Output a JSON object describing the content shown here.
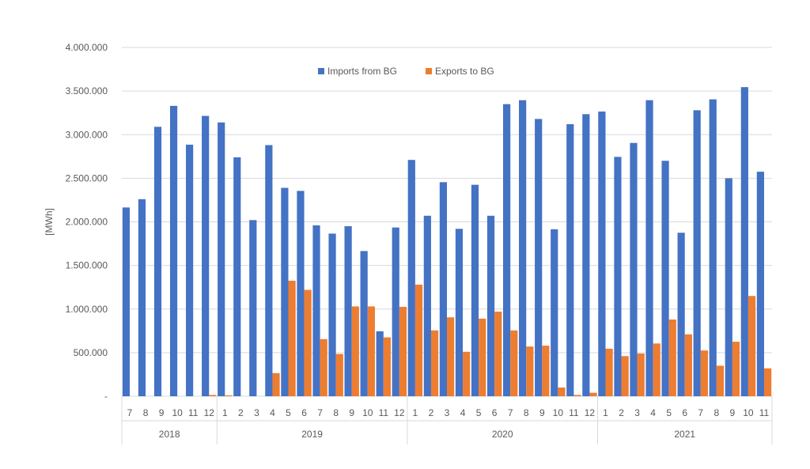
{
  "chart_data": {
    "type": "bar",
    "ylabel": "[MWh]",
    "ylim": [
      0,
      4000000
    ],
    "yticks": [
      0,
      500000,
      1000000,
      1500000,
      2000000,
      2500000,
      3000000,
      3500000,
      4000000
    ],
    "ytick_labels": [
      "-",
      "500.000",
      "1.000.000",
      "1.500.000",
      "2.000.000",
      "2.500.000",
      "3.000.000",
      "3.500.000",
      "4.000.000"
    ],
    "grid": true,
    "legend_position": "top-center",
    "categories": [
      "7",
      "8",
      "9",
      "10",
      "11",
      "12",
      "1",
      "2",
      "3",
      "4",
      "5",
      "6",
      "7",
      "8",
      "9",
      "10",
      "11",
      "12",
      "1",
      "2",
      "3",
      "4",
      "5",
      "6",
      "7",
      "8",
      "9",
      "10",
      "11",
      "12",
      "1",
      "2",
      "3",
      "4",
      "5",
      "6",
      "7",
      "8",
      "9",
      "10",
      "11"
    ],
    "groups": [
      {
        "label": "2018",
        "count": 6
      },
      {
        "label": "2019",
        "count": 12
      },
      {
        "label": "2020",
        "count": 12
      },
      {
        "label": "2021",
        "count": 11
      }
    ],
    "series": [
      {
        "name": "Imports from BG",
        "color": "#4472C4",
        "values": [
          2165000,
          2260000,
          3090000,
          3330000,
          2885000,
          3215000,
          3140000,
          2740000,
          2020000,
          2880000,
          2390000,
          2355000,
          1960000,
          1865000,
          1950000,
          1665000,
          745000,
          1935000,
          2710000,
          2070000,
          2455000,
          1920000,
          2425000,
          2070000,
          3350000,
          3395000,
          3180000,
          1915000,
          3120000,
          3235000,
          3265000,
          2745000,
          2905000,
          3395000,
          2700000,
          1875000,
          3280000,
          3405000,
          2500000,
          3545000,
          2575000
        ]
      },
      {
        "name": "Exports to BG",
        "color": "#ED7D31",
        "values": [
          0,
          0,
          0,
          0,
          0,
          15000,
          10000,
          0,
          0,
          265000,
          1325000,
          1220000,
          655000,
          485000,
          1030000,
          1030000,
          675000,
          1025000,
          1280000,
          755000,
          905000,
          510000,
          890000,
          970000,
          755000,
          570000,
          580000,
          100000,
          15000,
          40000,
          545000,
          460000,
          490000,
          605000,
          880000,
          710000,
          525000,
          350000,
          625000,
          1150000,
          320000
        ]
      }
    ]
  }
}
